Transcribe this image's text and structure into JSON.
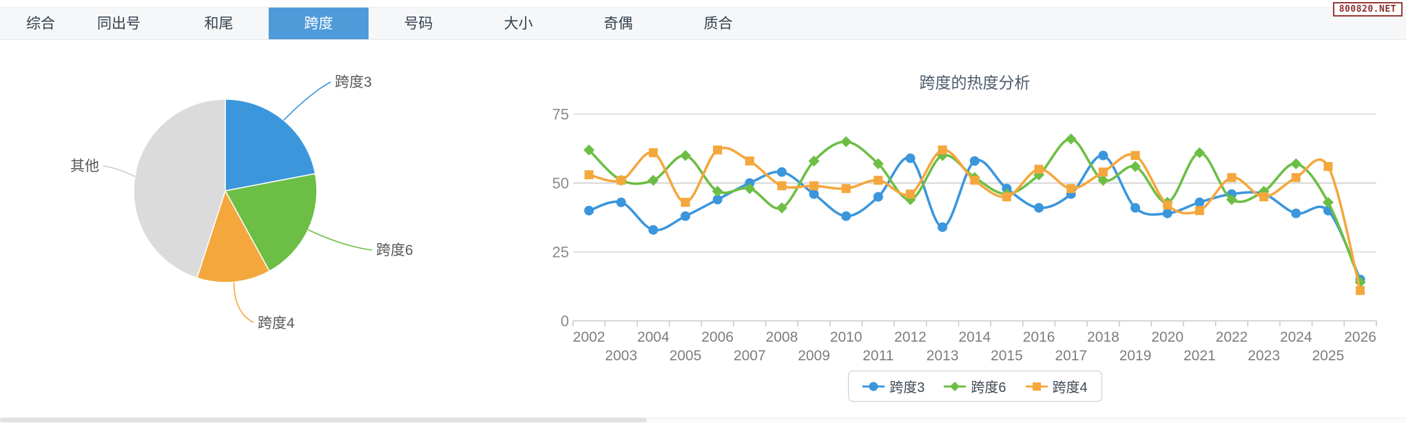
{
  "badge": {
    "text": "800820.NET"
  },
  "tabs": {
    "items": [
      {
        "name": "tab-zonghe",
        "label": "综合",
        "active": false
      },
      {
        "name": "tab-tongchuhao",
        "label": "同出号",
        "active": false
      },
      {
        "name": "tab-hewei",
        "label": "和尾",
        "active": false
      },
      {
        "name": "tab-kuadu",
        "label": "跨度",
        "active": true
      },
      {
        "name": "tab-haoma",
        "label": "号码",
        "active": false
      },
      {
        "name": "tab-daxiao",
        "label": "大小",
        "active": false
      },
      {
        "name": "tab-jiou",
        "label": "奇偶",
        "active": false
      },
      {
        "name": "tab-zhihe",
        "label": "质合",
        "active": false
      }
    ]
  },
  "colors": {
    "blue": "#3B96DC",
    "green": "#6CBE44",
    "orange": "#F4A73D",
    "gray": "#DBDBDB",
    "active_tab": "#4F9BDA"
  },
  "chart_data": [
    {
      "type": "pie",
      "title": "",
      "labels": [
        "跨度3",
        "跨度6",
        "跨度4",
        "其他"
      ],
      "values": [
        22,
        20,
        13,
        45
      ],
      "unit": "percent_estimated",
      "colors": [
        "#3B96DC",
        "#6CBE44",
        "#F4A73D",
        "#DBDBDB"
      ],
      "start_angle": "top",
      "direction": "clockwise",
      "labels_outside_with_leader_lines": true,
      "legend_position": "none"
    },
    {
      "type": "line",
      "title": "跨度的热度分析",
      "x": [
        2002,
        2003,
        2004,
        2005,
        2006,
        2007,
        2008,
        2009,
        2010,
        2011,
        2012,
        2013,
        2014,
        2015,
        2016,
        2017,
        2018,
        2019,
        2020,
        2021,
        2022,
        2023,
        2024,
        2025,
        2026
      ],
      "series": [
        {
          "name": "跨度3",
          "marker": "circle",
          "color": "#3B96DC",
          "values": [
            40,
            43,
            33,
            38,
            44,
            50,
            54,
            46,
            38,
            45,
            59,
            34,
            58,
            48,
            41,
            46,
            60,
            41,
            39,
            43,
            46,
            46,
            39,
            40,
            15
          ]
        },
        {
          "name": "跨度6",
          "marker": "diamond",
          "color": "#6CBE44",
          "values": [
            62,
            51,
            51,
            60,
            47,
            48,
            41,
            58,
            65,
            57,
            44,
            60,
            52,
            46,
            53,
            66,
            51,
            56,
            43,
            61,
            44,
            47,
            57,
            43,
            14
          ]
        },
        {
          "name": "跨度4",
          "marker": "square",
          "color": "#F4A73D",
          "values": [
            53,
            51,
            61,
            43,
            62,
            58,
            49,
            49,
            48,
            51,
            46,
            62,
            51,
            45,
            55,
            48,
            54,
            60,
            42,
            40,
            52,
            45,
            52,
            56,
            11
          ]
        }
      ],
      "xlabel": "",
      "ylabel": "",
      "ylim": [
        0,
        75
      ],
      "yticks": [
        0,
        25,
        50,
        75
      ],
      "grid": true,
      "smooth": true,
      "x_tick_label_rows": "staggered_two_rows",
      "legend_position": "bottom"
    }
  ]
}
